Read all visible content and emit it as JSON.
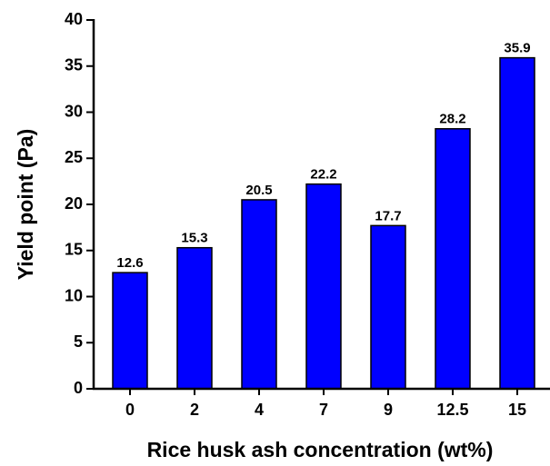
{
  "chart_data": {
    "type": "bar",
    "xlabel": "Rice husk ash concentration (wt%)",
    "ylabel": "Yield point (Pa)",
    "categories": [
      "0",
      "2",
      "4",
      "7",
      "9",
      "12.5",
      "15"
    ],
    "values": [
      12.6,
      15.3,
      20.5,
      22.2,
      17.7,
      28.2,
      35.9
    ],
    "color": "#0000ff",
    "ylim": [
      0,
      40
    ],
    "yticks": [
      0,
      5,
      10,
      15,
      20,
      25,
      30,
      35,
      40
    ],
    "grid": false
  }
}
